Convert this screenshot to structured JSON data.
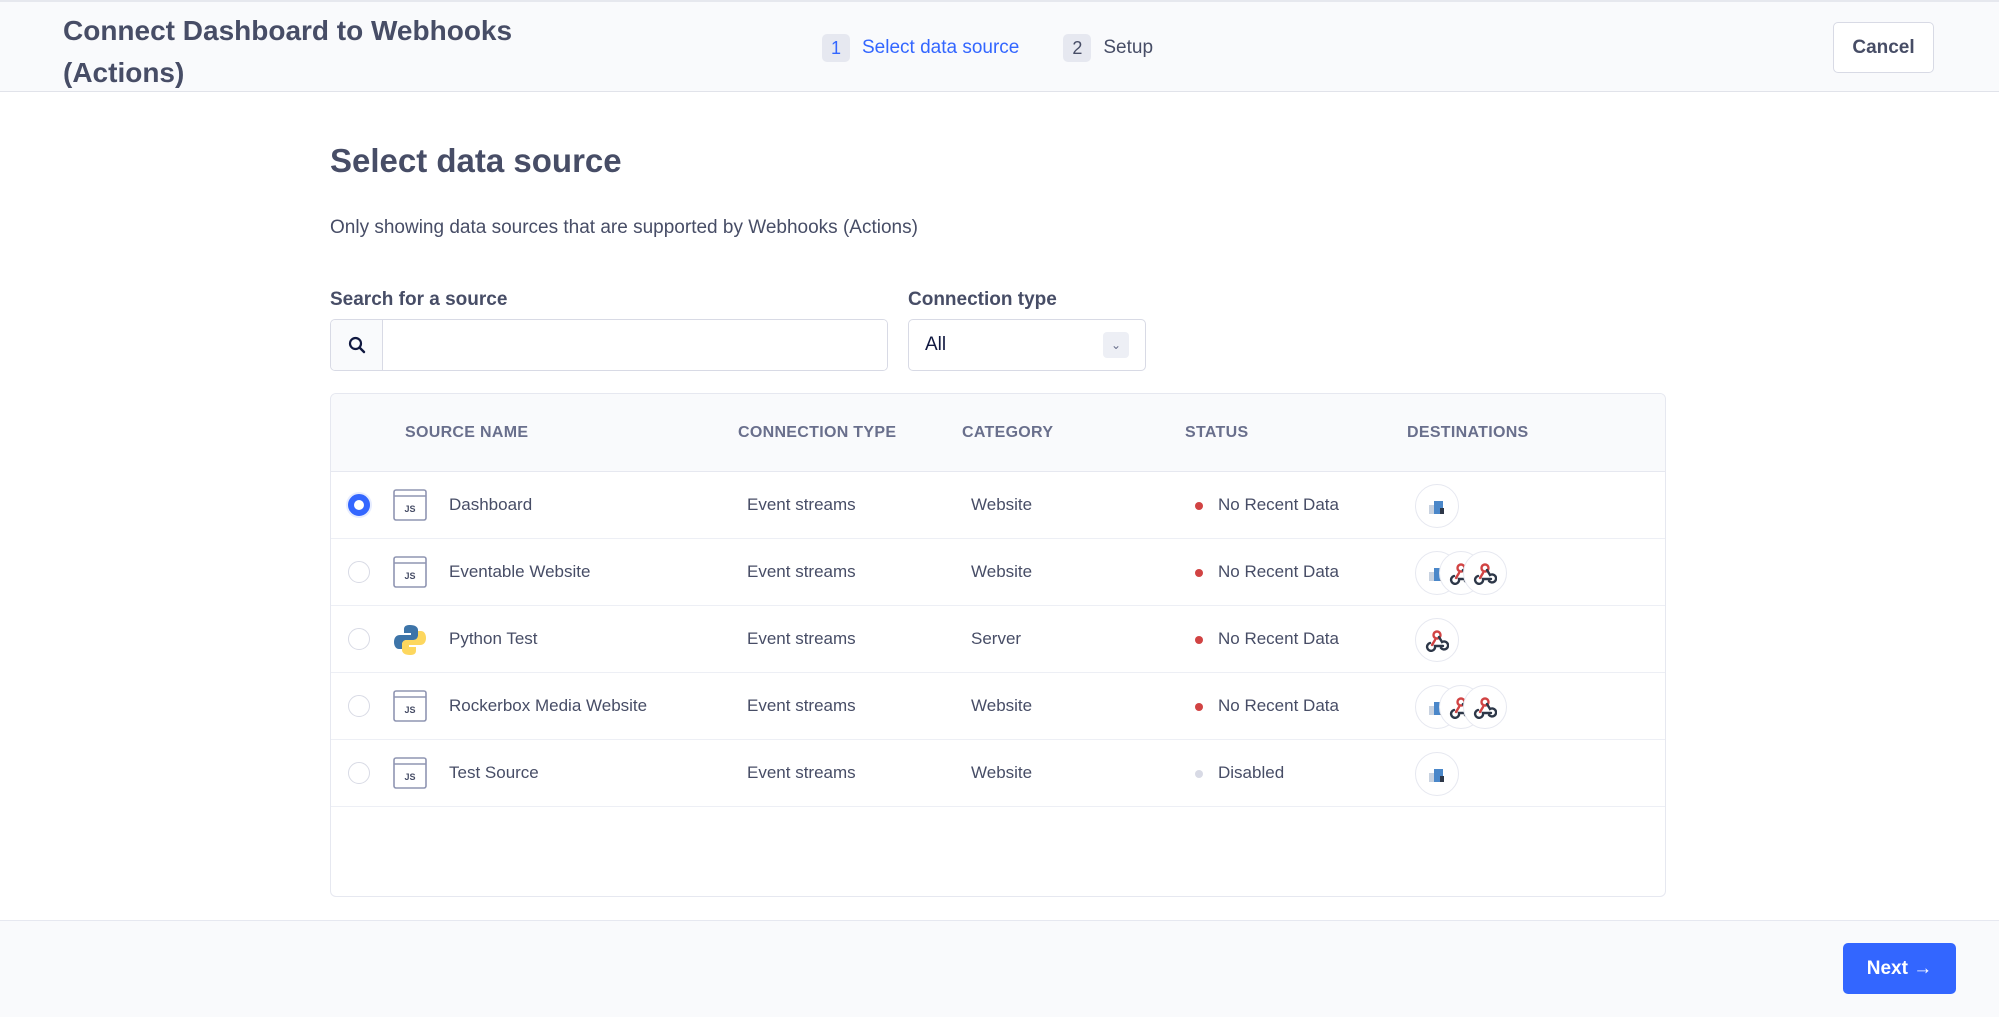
{
  "header": {
    "title": "Connect Dashboard to Webhooks (Actions)",
    "steps": [
      {
        "num": "1",
        "label": "Select data source",
        "active": true
      },
      {
        "num": "2",
        "label": "Setup",
        "active": false
      }
    ],
    "cancel": "Cancel"
  },
  "main": {
    "heading": "Select data source",
    "subtitle": "Only showing data sources that are supported by Webhooks (Actions)",
    "search_label": "Search for a source",
    "search_value": "",
    "conn_label": "Connection type",
    "conn_value": "All"
  },
  "table": {
    "columns": [
      "SOURCE NAME",
      "CONNECTION TYPE",
      "CATEGORY",
      "STATUS",
      "DESTINATIONS"
    ],
    "rows": [
      {
        "selected": true,
        "icon": "js",
        "name": "Dashboard",
        "conn": "Event streams",
        "category": "Website",
        "status": "No Recent Data",
        "status_color": "#d14343",
        "dests": [
          "segment-data-icon"
        ]
      },
      {
        "selected": false,
        "icon": "js",
        "name": "Eventable Website",
        "conn": "Event streams",
        "category": "Website",
        "status": "No Recent Data",
        "status_color": "#d14343",
        "dests": [
          "segment-data-icon",
          "webhook-icon",
          "webhook-icon"
        ]
      },
      {
        "selected": false,
        "icon": "python",
        "name": "Python Test",
        "conn": "Event streams",
        "category": "Server",
        "status": "No Recent Data",
        "status_color": "#d14343",
        "dests": [
          "webhook-icon"
        ]
      },
      {
        "selected": false,
        "icon": "js",
        "name": "Rockerbox Media Website",
        "conn": "Event streams",
        "category": "Website",
        "status": "No Recent Data",
        "status_color": "#d14343",
        "dests": [
          "segment-data-icon",
          "webhook-icon",
          "webhook-icon"
        ]
      },
      {
        "selected": false,
        "icon": "js",
        "name": "Test Source",
        "conn": "Event streams",
        "category": "Website",
        "status": "Disabled",
        "status_color": "#d8dae5",
        "dests": [
          "segment-data-icon"
        ]
      }
    ]
  },
  "footer": {
    "next": "Next",
    "next_icon": "arrow-right-icon"
  },
  "colors": {
    "accent": "#3366ff",
    "error": "#d14343"
  }
}
